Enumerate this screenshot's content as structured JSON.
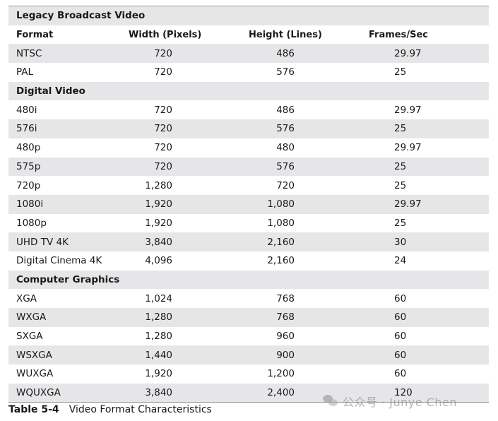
{
  "sections": [
    {
      "title": "Legacy Broadcast Video",
      "header": [
        "Format",
        "Width (Pixels)",
        "Height (Lines)",
        "Frames/Sec"
      ],
      "rows": [
        [
          "NTSC",
          "720",
          "486",
          "29.97"
        ],
        [
          "PAL",
          "720",
          "576",
          "25"
        ]
      ]
    },
    {
      "title": "Digital Video",
      "rows": [
        [
          "480i",
          "720",
          "486",
          "29.97"
        ],
        [
          "576i",
          "720",
          "576",
          "25"
        ],
        [
          "480p",
          "720",
          "480",
          "29.97"
        ],
        [
          "575p",
          "720",
          "576",
          "25"
        ],
        [
          "720p",
          "1,280",
          "720",
          "25"
        ],
        [
          "1080i",
          "1,920",
          "1,080",
          "29.97"
        ],
        [
          "1080p",
          "1,920",
          "1,080",
          "25"
        ],
        [
          "UHD TV 4K",
          "3,840",
          "2,160",
          "30"
        ],
        [
          "Digital Cinema 4K",
          "4,096",
          "2,160",
          "24"
        ]
      ]
    },
    {
      "title": "Computer Graphics",
      "rows": [
        [
          "XGA",
          "1,024",
          "768",
          "60"
        ],
        [
          "WXGA",
          "1,280",
          "768",
          "60"
        ],
        [
          "SXGA",
          "1,280",
          "960",
          "60"
        ],
        [
          "WSXGA",
          "1,440",
          "900",
          "60"
        ],
        [
          "WUXGA",
          "1,920",
          "1,200",
          "60"
        ],
        [
          "WQUXGA",
          "3,840",
          "2,400",
          "120"
        ]
      ]
    }
  ],
  "caption": {
    "number": "Table 5-4",
    "text": "Video Format Characteristics"
  },
  "watermark": {
    "icon": "wechat-icon",
    "text": "公众号 · Junye Chen"
  },
  "colors": {
    "shade": "#e6e6e8",
    "rule": "#9a9a9a"
  }
}
